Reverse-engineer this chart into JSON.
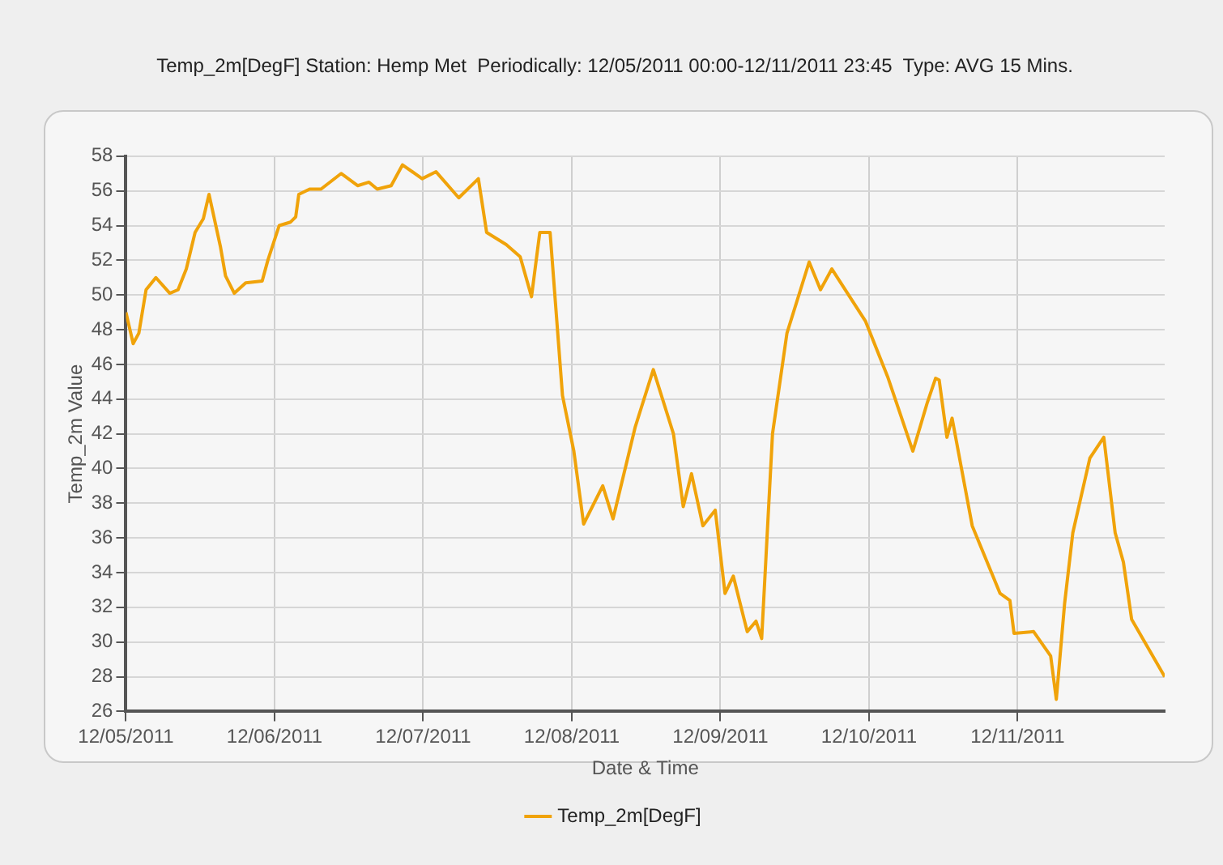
{
  "chart_data": {
    "type": "line",
    "title": "Temp_2m[DegF] Station: Hemp Met  Periodically: 12/05/2011 00:00-12/11/2011 23:45  Type: AVG 15 Mins.",
    "xlabel": "Date & Time",
    "ylabel": "Temp_2m Value",
    "x": [
      "2011-12-05T00:00",
      "2011-12-05T01:10",
      "2011-12-05T02:05",
      "2011-12-05T03:15",
      "2011-12-05T04:50",
      "2011-12-05T07:05",
      "2011-12-05T08:25",
      "2011-12-05T09:45",
      "2011-12-05T11:10",
      "2011-12-05T12:30",
      "2011-12-05T13:25",
      "2011-12-05T15:15",
      "2011-12-05T16:05",
      "2011-12-05T17:30",
      "2011-12-05T19:20",
      "2011-12-05T22:00",
      "2011-12-05T22:55",
      "2011-12-06T00:45",
      "2011-12-06T02:35",
      "2011-12-06T03:25",
      "2011-12-06T03:55",
      "2011-12-06T05:40",
      "2011-12-06T07:30",
      "2011-12-06T10:45",
      "2011-12-06T13:25",
      "2011-12-06T15:15",
      "2011-12-06T16:35",
      "2011-12-06T18:50",
      "2011-12-06T20:40",
      "2011-12-06T23:50",
      "2011-12-07T02:05",
      "2011-12-07T05:45",
      "2011-12-07T08:55",
      "2011-12-07T10:15",
      "2011-12-07T13:25",
      "2011-12-07T15:40",
      "2011-12-07T17:30",
      "2011-12-07T18:50",
      "2011-12-07T20:30",
      "2011-12-07T22:30",
      "2011-12-08T00:20",
      "2011-12-08T01:55",
      "2011-12-08T05:00",
      "2011-12-08T06:40",
      "2011-12-08T10:15",
      "2011-12-08T13:10",
      "2011-12-08T16:25",
      "2011-12-08T18:00",
      "2011-12-08T19:20",
      "2011-12-08T21:10",
      "2011-12-08T23:10",
      "2011-12-09T00:45",
      "2011-12-09T02:05",
      "2011-12-09T04:20",
      "2011-12-09T05:45",
      "2011-12-09T06:40",
      "2011-12-09T08:25",
      "2011-12-09T10:45",
      "2011-12-09T14:20",
      "2011-12-09T16:10",
      "2011-12-09T18:00",
      "2011-12-09T23:25",
      "2011-12-10T03:00",
      "2011-12-10T07:05",
      "2011-12-10T09:25",
      "2011-12-10T10:45",
      "2011-12-10T11:20",
      "2011-12-10T12:35",
      "2011-12-10T13:25",
      "2011-12-10T16:40",
      "2011-12-10T21:10",
      "2011-12-10T22:45",
      "2011-12-10T23:25",
      "2011-12-11T02:35",
      "2011-12-11T05:20",
      "2011-12-11T06:15",
      "2011-12-11T07:35",
      "2011-12-11T08:55",
      "2011-12-11T11:40",
      "2011-12-11T13:55",
      "2011-12-11T15:45",
      "2011-12-11T17:05",
      "2011-12-11T18:25",
      "2011-12-11T23:45"
    ],
    "series": [
      {
        "name": "Temp_2m[DegF]",
        "color": "#f0a30a",
        "values": [
          49.0,
          47.2,
          47.8,
          50.3,
          51.0,
          50.1,
          50.3,
          51.5,
          53.6,
          54.4,
          55.8,
          52.8,
          51.1,
          50.1,
          50.7,
          50.8,
          52.0,
          54.0,
          54.2,
          54.5,
          55.8,
          56.1,
          56.1,
          57.0,
          56.3,
          56.5,
          56.1,
          56.3,
          57.5,
          56.7,
          57.1,
          55.6,
          56.7,
          53.6,
          52.9,
          52.2,
          49.9,
          53.6,
          53.6,
          44.2,
          41.0,
          36.8,
          39.0,
          37.1,
          42.4,
          45.7,
          42.0,
          37.8,
          39.7,
          36.7,
          37.6,
          32.8,
          33.8,
          30.6,
          31.2,
          30.2,
          42.0,
          47.8,
          51.9,
          50.3,
          51.5,
          48.5,
          45.3,
          41.0,
          43.8,
          45.2,
          45.1,
          41.8,
          42.9,
          36.7,
          32.8,
          32.4,
          30.5,
          30.6,
          29.2,
          26.7,
          32.2,
          36.3,
          40.6,
          41.8,
          36.3,
          34.6,
          31.3,
          28.0
        ]
      }
    ],
    "xlim": [
      "2011-12-05T00:00",
      "2011-12-11T23:45"
    ],
    "xticks": [
      {
        "value": "2011-12-05",
        "label": "12/05/2011"
      },
      {
        "value": "2011-12-06",
        "label": "12/06/2011"
      },
      {
        "value": "2011-12-07",
        "label": "12/07/2011"
      },
      {
        "value": "2011-12-08",
        "label": "12/08/2011"
      },
      {
        "value": "2011-12-09",
        "label": "12/09/2011"
      },
      {
        "value": "2011-12-10",
        "label": "12/10/2011"
      },
      {
        "value": "2011-12-11",
        "label": "12/11/2011"
      }
    ],
    "ylim": [
      26,
      58
    ],
    "yticks": [
      26,
      28,
      30,
      32,
      34,
      36,
      38,
      40,
      42,
      44,
      46,
      48,
      50,
      52,
      54,
      56,
      58
    ],
    "grid": true,
    "legend": "bottom",
    "marker": "none",
    "line_style": "solid"
  }
}
